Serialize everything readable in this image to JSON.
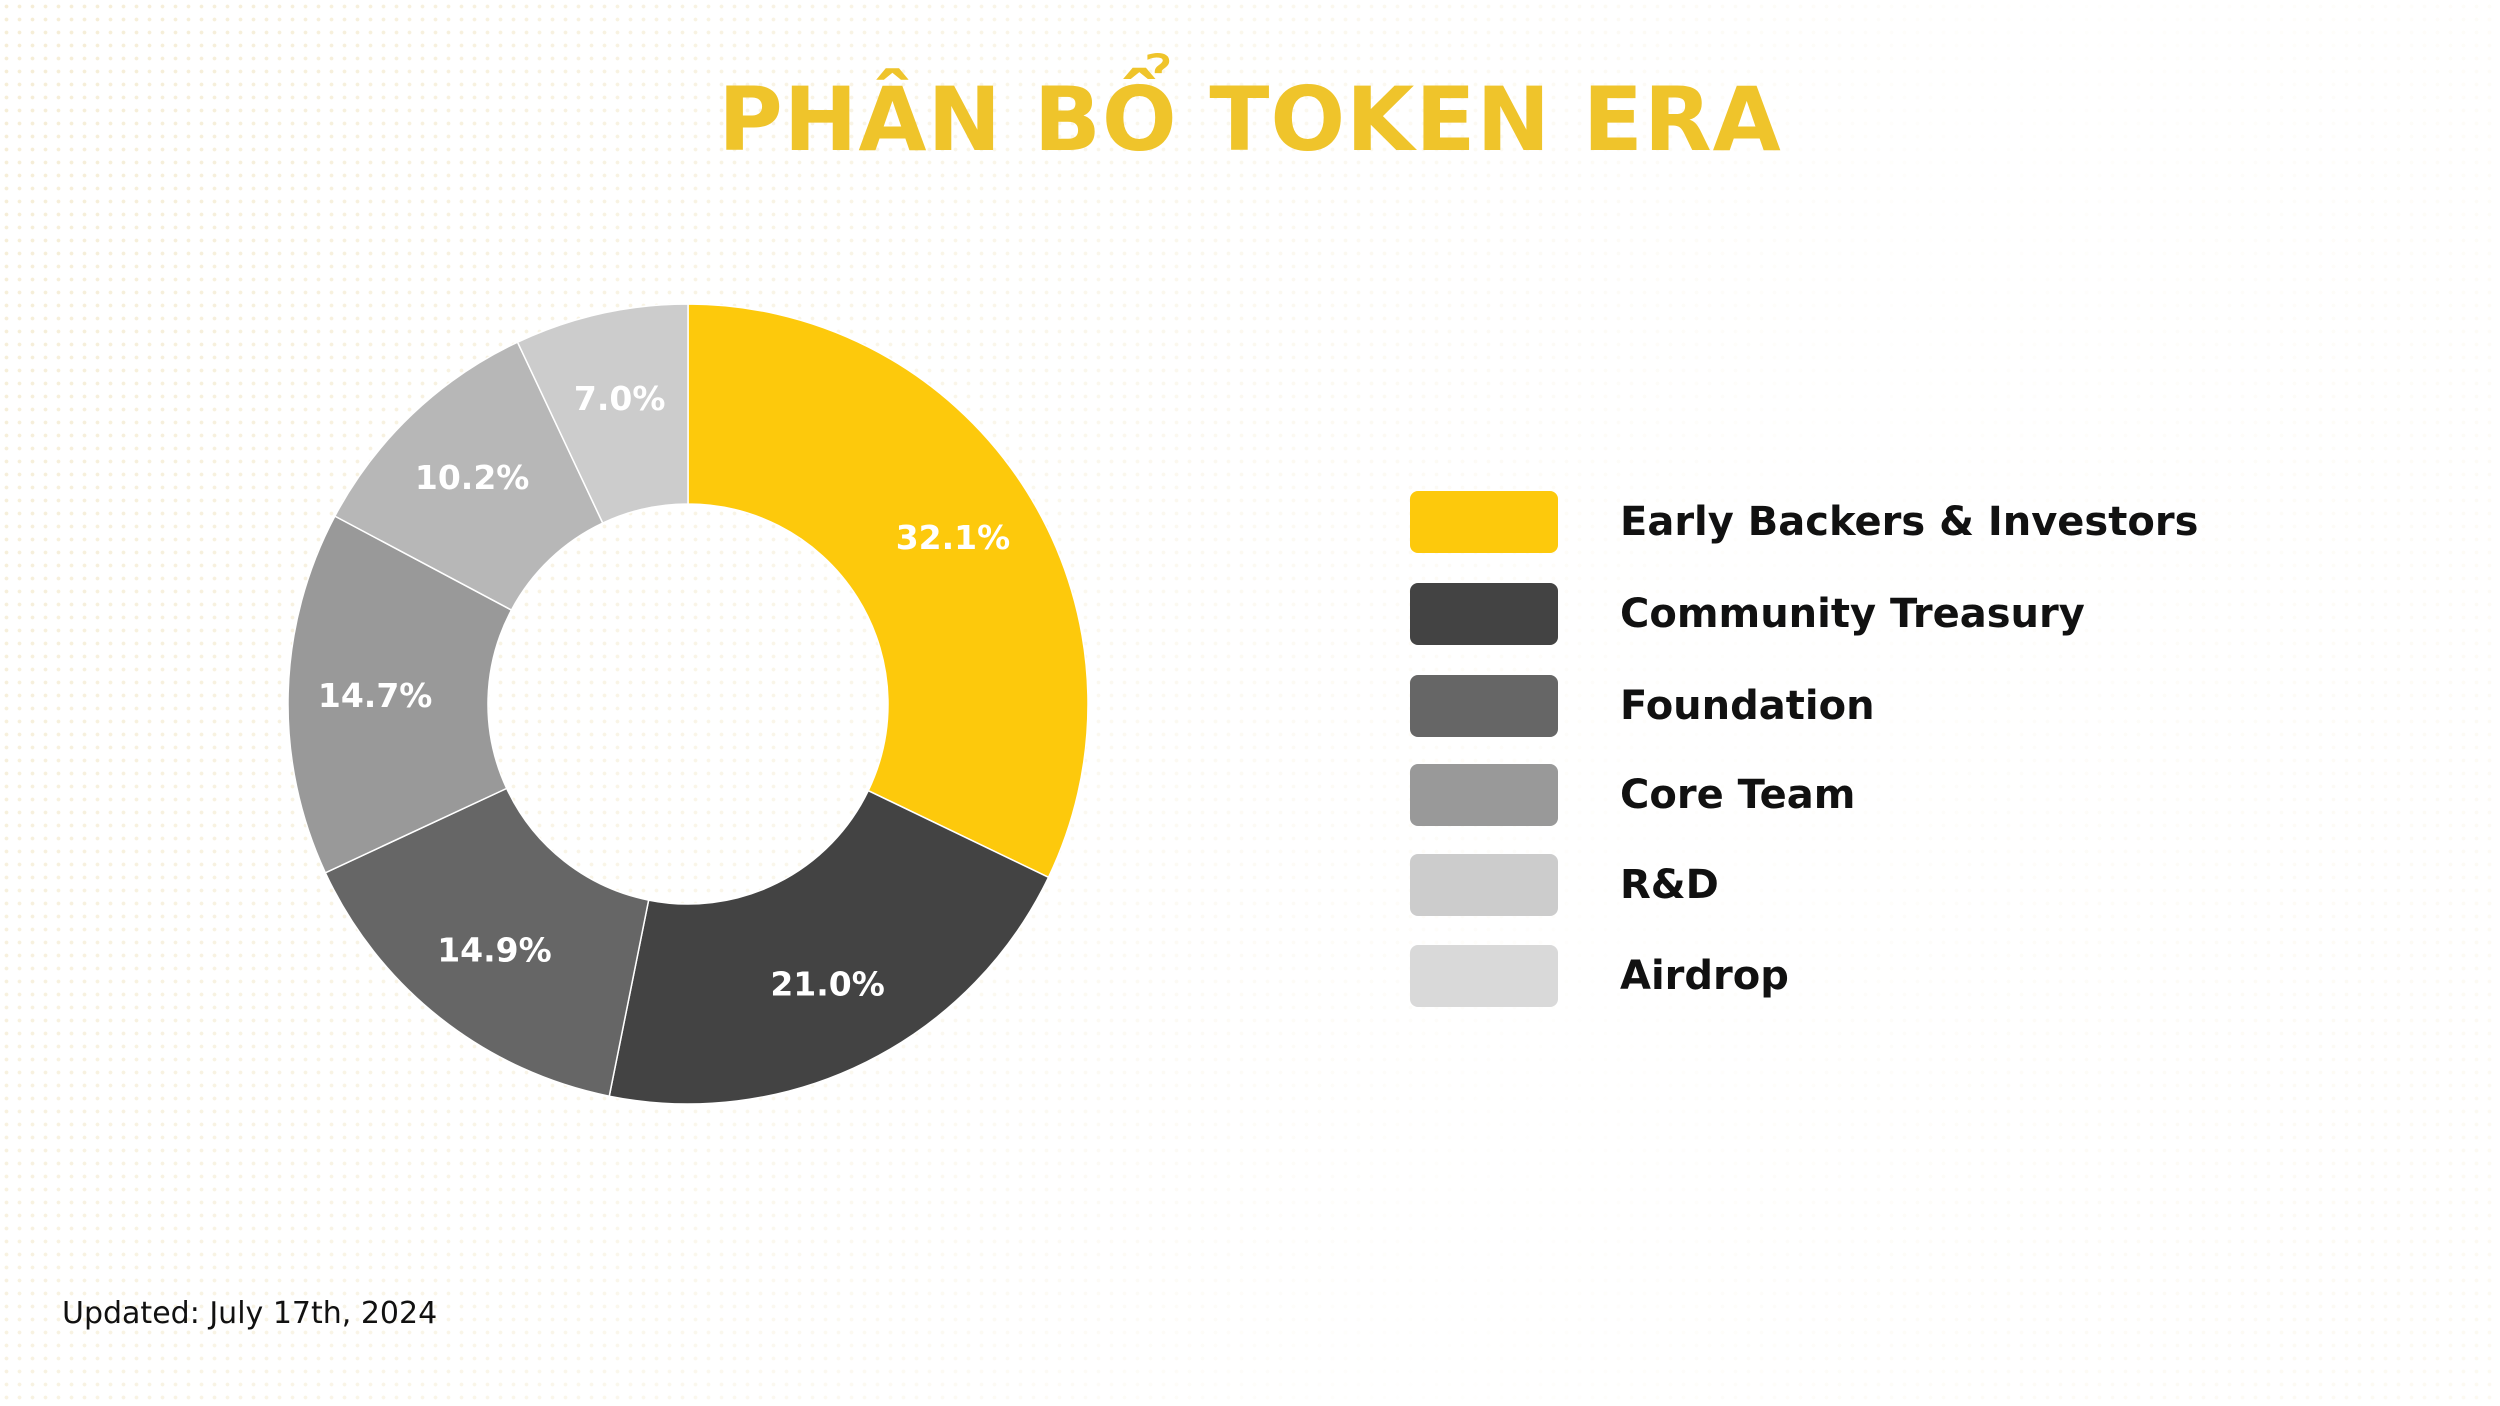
{
  "title": "PHÂN BỔ TOKEN ERA",
  "updated": "Updated: July 17th, 2024",
  "colors": {
    "title": "#efc42b",
    "background": "#ffffff"
  },
  "chart_data": {
    "type": "pie",
    "style": "donut",
    "categories": [
      "Early Backers & Investors",
      "Community Treasury",
      "Foundation",
      "Core Team",
      "R&D",
      "Airdrop"
    ],
    "values": [
      32.1,
      21.0,
      14.9,
      14.7,
      10.2,
      7.0
    ],
    "labels": [
      "32.1%",
      "21.0%",
      "14.9%",
      "14.7%",
      "10.2%",
      "7.0%"
    ],
    "colors": [
      "#fdc90c",
      "#434343",
      "#666666",
      "#999999",
      "#b7b7b7",
      "#cccccc"
    ],
    "start_angle": "top",
    "direction": "clockwise",
    "legend_position": "right"
  },
  "legend": [
    {
      "label": "Early Backers & Investors",
      "color": "#fdc90c"
    },
    {
      "label": "Community Treasury",
      "color": "#434343"
    },
    {
      "label": "Foundation",
      "color": "#666666"
    },
    {
      "label": "Core Team",
      "color": "#999999"
    },
    {
      "label": "R&D",
      "color": "#cccccc"
    },
    {
      "label": "Airdrop",
      "color": "#d9d9d9"
    }
  ]
}
